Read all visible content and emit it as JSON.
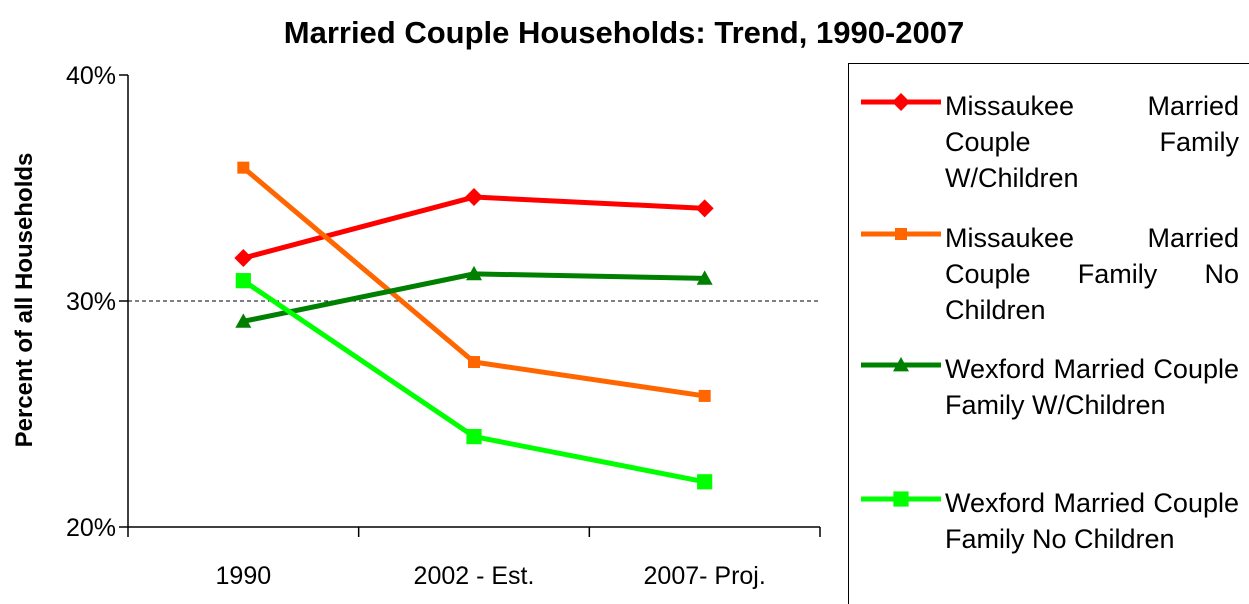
{
  "chart_data": {
    "type": "line",
    "title": "Married Couple Households: Trend, 1990-2007",
    "y_label": "Percent of all Households",
    "categories": [
      "1990",
      "2002 - Est.",
      "2007- Proj."
    ],
    "series": [
      {
        "name": "Missaukee Married Couple Family W/Children",
        "color": "#ff0000",
        "marker": "diamond",
        "values": [
          31.9,
          34.6,
          34.1
        ]
      },
      {
        "name": "Missaukee Married Couple Family No Children",
        "color": "#ff6600",
        "marker": "square",
        "values": [
          35.9,
          27.3,
          25.8
        ]
      },
      {
        "name": "Wexford Married Couple Family W/Children",
        "color": "#008000",
        "marker": "triangle",
        "values": [
          29.1,
          31.2,
          31.0
        ]
      },
      {
        "name": "Wexford Married Couple Family No Children",
        "color": "#00ff00",
        "marker": "square",
        "values": [
          30.9,
          24.0,
          22.0
        ]
      }
    ],
    "ylim": [
      20,
      40
    ],
    "yticks": [
      {
        "value": 20,
        "label": "20%"
      },
      {
        "value": 30,
        "label": "30%"
      },
      {
        "value": 40,
        "label": "40%"
      }
    ],
    "grid": true,
    "legend": "right"
  }
}
